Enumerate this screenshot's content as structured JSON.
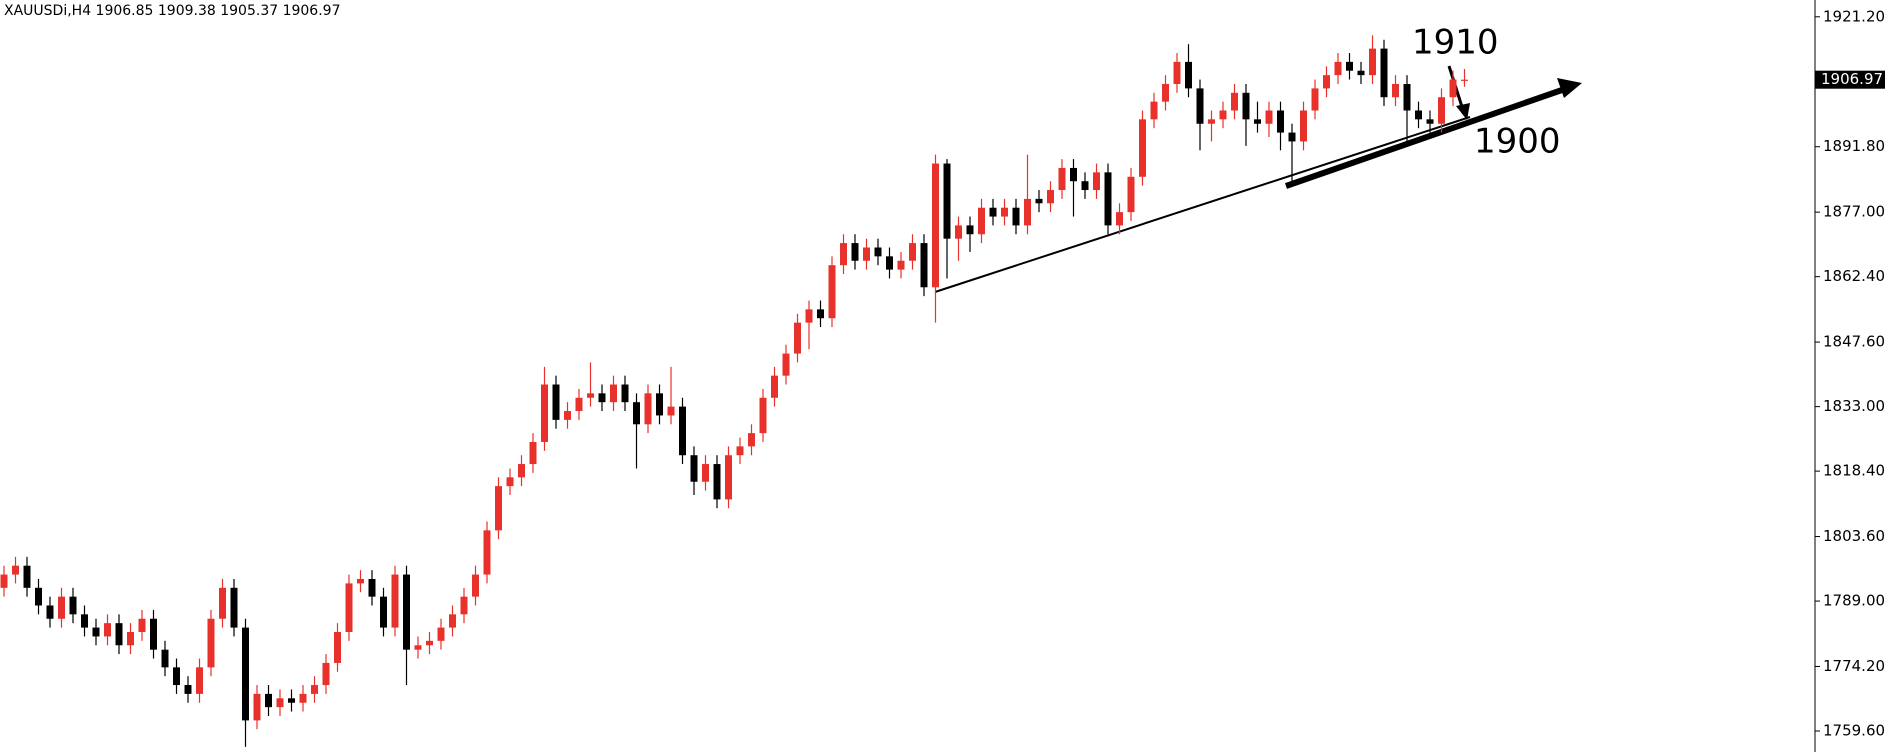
{
  "chart_data": {
    "type": "candlestick",
    "title": "XAUUSDi,H4  1906.85 1909.38 1905.37 1906.97",
    "open": [
      1792,
      1795,
      1797,
      1792,
      1788,
      1785,
      1790,
      1786,
      1783,
      1781,
      1784,
      1779,
      1782,
      1785,
      1778,
      1774,
      1770,
      1768,
      1774,
      1785,
      1792,
      1783,
      1762,
      1768,
      1765,
      1767,
      1766,
      1768,
      1770,
      1775,
      1782,
      1793,
      1794,
      1790,
      1783,
      1795,
      1778,
      1779,
      1780,
      1783,
      1786,
      1790,
      1795,
      1805,
      1815,
      1817,
      1820,
      1825,
      1838,
      1830,
      1832,
      1835,
      1836,
      1834,
      1838,
      1834,
      1829,
      1836,
      1831,
      1833,
      1822,
      1816,
      1820,
      1812,
      1822,
      1824,
      1827,
      1835,
      1840,
      1845,
      1852,
      1855,
      1853,
      1865,
      1870,
      1866,
      1869,
      1867,
      1864,
      1866,
      1870,
      1860,
      1888,
      1871,
      1874,
      1872,
      1878,
      1876,
      1878,
      1874,
      1880,
      1879,
      1882,
      1887,
      1884,
      1882,
      1886,
      1874,
      1877,
      1885,
      1898,
      1902,
      1906,
      1911,
      1905,
      1897,
      1898,
      1900,
      1904,
      1898,
      1897,
      1900,
      1895,
      1893,
      1900,
      1905,
      1908,
      1911,
      1909,
      1908,
      1914,
      1903,
      1906,
      1900,
      1898,
      1897,
      1903,
      1906.85
    ],
    "high": [
      1797,
      1799,
      1799,
      1794,
      1790,
      1792,
      1792,
      1788,
      1785,
      1786,
      1786,
      1784,
      1787,
      1787,
      1780,
      1776,
      1772,
      1776,
      1787,
      1794,
      1794,
      1785,
      1770,
      1770,
      1769,
      1769,
      1770,
      1772,
      1777,
      1784,
      1795,
      1796,
      1796,
      1792,
      1797,
      1797,
      1781,
      1782,
      1785,
      1788,
      1792,
      1797,
      1807,
      1817,
      1819,
      1822,
      1827,
      1842,
      1840,
      1834,
      1837,
      1843,
      1838,
      1840,
      1840,
      1836,
      1838,
      1838,
      1842,
      1835,
      1824,
      1822,
      1822,
      1824,
      1826,
      1829,
      1837,
      1842,
      1847,
      1854,
      1857,
      1857,
      1867,
      1872,
      1872,
      1871,
      1871,
      1869,
      1868,
      1872,
      1872,
      1890,
      1889,
      1876,
      1876,
      1880,
      1880,
      1880,
      1880,
      1890,
      1882,
      1884,
      1889,
      1889,
      1886,
      1888,
      1888,
      1879,
      1887,
      1900,
      1904,
      1908,
      1913,
      1915,
      1907,
      1900,
      1902,
      1906,
      1906,
      1902,
      1902,
      1902,
      1897,
      1902,
      1907,
      1910,
      1913,
      1913,
      1911,
      1917,
      1916,
      1908,
      1908,
      1902,
      1900,
      1905,
      1909,
      1909.38
    ],
    "low": [
      1790,
      1793,
      1790,
      1786,
      1783,
      1783,
      1784,
      1781,
      1779,
      1779,
      1777,
      1777,
      1780,
      1776,
      1772,
      1768,
      1766,
      1766,
      1772,
      1783,
      1781,
      1756,
      1760,
      1763,
      1763,
      1764,
      1764,
      1766,
      1768,
      1773,
      1780,
      1791,
      1788,
      1781,
      1781,
      1770,
      1776,
      1777,
      1778,
      1781,
      1784,
      1788,
      1793,
      1803,
      1813,
      1815,
      1818,
      1823,
      1828,
      1828,
      1830,
      1833,
      1832,
      1832,
      1832,
      1819,
      1827,
      1829,
      1829,
      1820,
      1813,
      1814,
      1810,
      1810,
      1820,
      1822,
      1825,
      1833,
      1838,
      1843,
      1846,
      1851,
      1851,
      1863,
      1864,
      1864,
      1865,
      1862,
      1862,
      1864,
      1858,
      1852,
      1862,
      1866,
      1868,
      1870,
      1874,
      1874,
      1872,
      1872,
      1877,
      1877,
      1880,
      1876,
      1880,
      1880,
      1872,
      1872,
      1875,
      1883,
      1896,
      1900,
      1904,
      1903,
      1891,
      1893,
      1896,
      1898,
      1892,
      1895,
      1894,
      1891,
      1883,
      1891,
      1898,
      1903,
      1906,
      1907,
      1906,
      1906,
      1901,
      1901,
      1892,
      1896,
      1895,
      1895,
      1901,
      1905.37
    ],
    "close": [
      1795,
      1797,
      1792,
      1788,
      1785,
      1790,
      1786,
      1783,
      1781,
      1784,
      1779,
      1782,
      1785,
      1778,
      1774,
      1770,
      1768,
      1774,
      1785,
      1792,
      1783,
      1762,
      1768,
      1765,
      1767,
      1766,
      1768,
      1770,
      1775,
      1782,
      1793,
      1794,
      1790,
      1783,
      1795,
      1778,
      1779,
      1780,
      1783,
      1786,
      1790,
      1795,
      1805,
      1815,
      1817,
      1820,
      1825,
      1838,
      1830,
      1832,
      1835,
      1836,
      1834,
      1838,
      1834,
      1829,
      1836,
      1831,
      1833,
      1822,
      1816,
      1820,
      1812,
      1822,
      1824,
      1827,
      1835,
      1840,
      1845,
      1852,
      1855,
      1853,
      1865,
      1870,
      1866,
      1869,
      1867,
      1864,
      1866,
      1870,
      1860,
      1888,
      1871,
      1874,
      1872,
      1878,
      1876,
      1878,
      1874,
      1880,
      1879,
      1882,
      1887,
      1884,
      1882,
      1886,
      1874,
      1877,
      1885,
      1898,
      1902,
      1906,
      1911,
      1905,
      1897,
      1898,
      1900,
      1904,
      1898,
      1897,
      1900,
      1895,
      1893,
      1900,
      1905,
      1908,
      1911,
      1909,
      1908,
      1914,
      1903,
      1906,
      1900,
      1898,
      1897,
      1903,
      1907,
      1906.97
    ],
    "up_color": "#e8312b",
    "down_color": "#000000",
    "ylim": [
      1754.85,
      1925.0
    ],
    "yticks": [
      {
        "value": 1921.2,
        "label": "1921.20"
      },
      {
        "value": 1891.8,
        "label": "1891.80"
      },
      {
        "value": 1877,
        "label": "1877.00"
      },
      {
        "value": 1862.4,
        "label": "1862.40"
      },
      {
        "value": 1847.6,
        "label": "1847.60"
      },
      {
        "value": 1833,
        "label": "1833.00"
      },
      {
        "value": 1818.4,
        "label": "1818.40"
      },
      {
        "value": 1803.6,
        "label": "1803.60"
      },
      {
        "value": 1789,
        "label": "1789.00"
      },
      {
        "value": 1774.2,
        "label": "1774.20"
      },
      {
        "value": 1759.6,
        "label": "1759.60"
      }
    ],
    "last_price": 1906.97,
    "annotations": [
      "1910",
      "1900"
    ]
  }
}
